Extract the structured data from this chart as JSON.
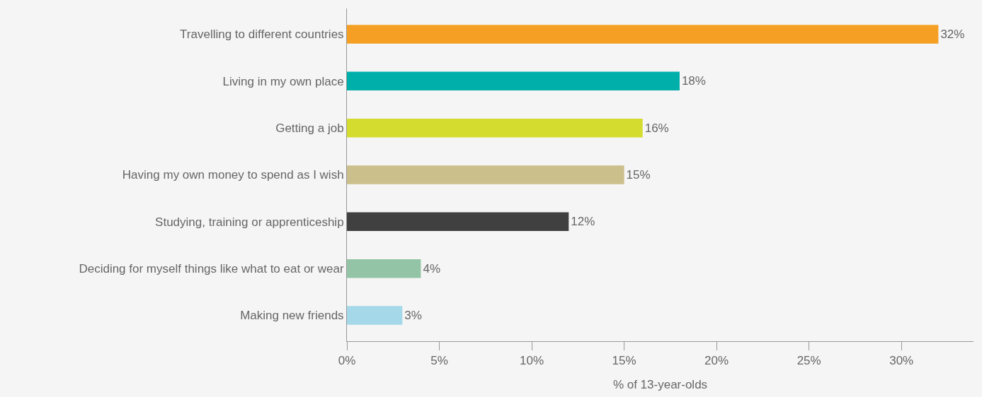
{
  "chart_data": {
    "type": "bar",
    "orientation": "horizontal",
    "xlabel": "% of 13-year-olds",
    "categories": [
      "Travelling to different countries",
      "Living in my own place",
      "Getting a job",
      "Having my own money to spend as I wish",
      "Studying, training or apprenticeship",
      "Deciding for myself things like what to eat or wear",
      "Making new friends"
    ],
    "values": [
      32,
      18,
      16,
      15,
      12,
      4,
      3
    ],
    "value_labels": [
      "32%",
      "18%",
      "16%",
      "15%",
      "12%",
      "4%",
      "3%"
    ],
    "colors": [
      "#f5a024",
      "#00aeaa",
      "#d4dc2f",
      "#cbbf8c",
      "#404040",
      "#93c4a5",
      "#a5d8e8"
    ],
    "xlim": [
      0,
      33.9
    ],
    "xticks": [
      {
        "value": 0,
        "label": "0%"
      },
      {
        "value": 5,
        "label": "5%"
      },
      {
        "value": 10,
        "label": "10%"
      },
      {
        "value": 15,
        "label": "15%"
      },
      {
        "value": 20,
        "label": "20%"
      },
      {
        "value": 25,
        "label": "25%"
      },
      {
        "value": 30,
        "label": "30%"
      }
    ],
    "grid": false
  }
}
